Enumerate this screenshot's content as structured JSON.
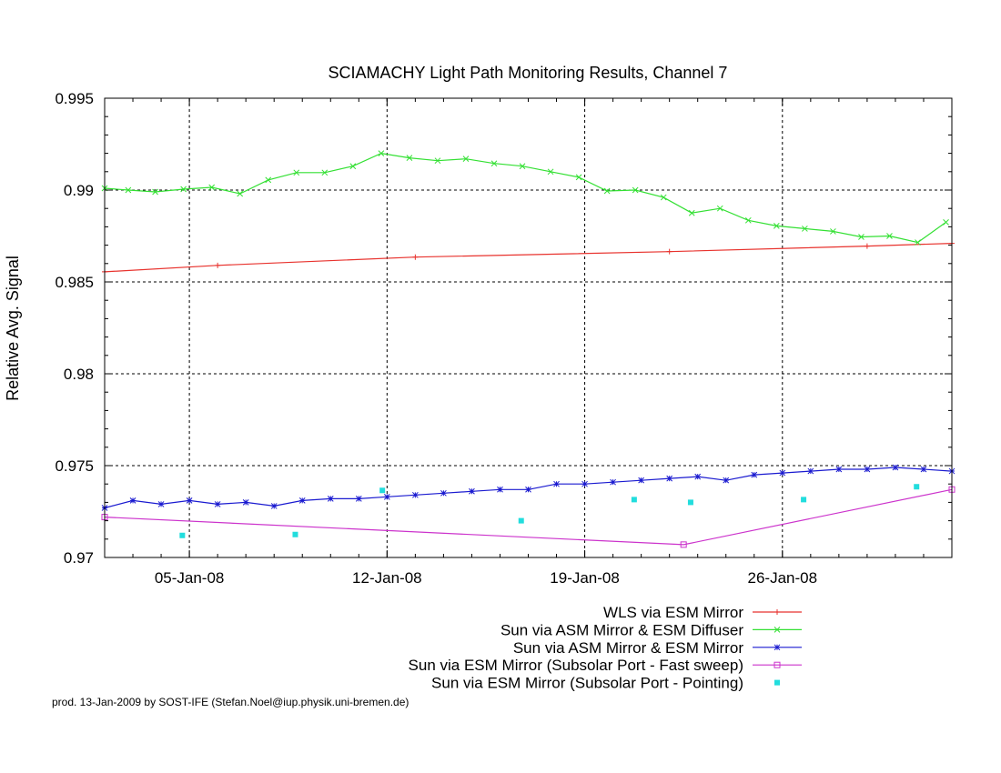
{
  "chart_data": {
    "type": "line",
    "title": "SCIAMACHY Light Path Monitoring Results, Channel 7",
    "xlabel": "",
    "ylabel": "Relative Avg. Signal",
    "xlim": [
      "2008-01-02",
      "2008-02-01"
    ],
    "ylim": [
      0.97,
      0.995
    ],
    "x_ticks": [
      "2008-01-05",
      "2008-01-12",
      "2008-01-19",
      "2008-01-26"
    ],
    "x_tick_labels": [
      "05-Jan-08",
      "12-Jan-08",
      "19-Jan-08",
      "26-Jan-08"
    ],
    "y_ticks": [
      0.97,
      0.975,
      0.98,
      0.985,
      0.99,
      0.995
    ],
    "y_tick_labels": [
      "0.97",
      "0.975",
      "0.98",
      "0.985",
      "0.99",
      "0.995"
    ],
    "grid": true,
    "legend_position": "bottom-right",
    "footer": "prod. 13-Jan-2009 by SOST-IFE (Stefan.Noel@iup.physik.uni-bremen.de)",
    "series": [
      {
        "name": "WLS via ESM Mirror",
        "color": "#e8322d",
        "marker": "plus",
        "line": true,
        "x": [
          "2008-01-02",
          "2008-01-06",
          "2008-01-13",
          "2008-01-22",
          "2008-01-29",
          "2008-02-01"
        ],
        "y": [
          0.98555,
          0.9859,
          0.98635,
          0.98665,
          0.98695,
          0.9871
        ]
      },
      {
        "name": "Sun via ASM Mirror & ESM Diffuser",
        "color": "#33e033",
        "marker": "x",
        "line": true,
        "x": [
          "2008-01-02",
          "2008-01-02 20:00",
          "2008-01-03 19:00",
          "2008-01-04 19:00",
          "2008-01-05 19:00",
          "2008-01-06 19:00",
          "2008-01-07 19:00",
          "2008-01-08 19:00",
          "2008-01-09 19:00",
          "2008-01-10 19:00",
          "2008-01-11 19:00",
          "2008-01-12 19:00",
          "2008-01-13 19:00",
          "2008-01-14 19:00",
          "2008-01-15 19:00",
          "2008-01-16 19:00",
          "2008-01-17 19:00",
          "2008-01-18 19:00",
          "2008-01-19 19:00",
          "2008-01-20 19:00",
          "2008-01-21 19:00",
          "2008-01-22 19:00",
          "2008-01-23 19:00",
          "2008-01-24 19:00",
          "2008-01-25 19:00",
          "2008-01-26 19:00",
          "2008-01-27 19:00",
          "2008-01-28 19:00",
          "2008-01-29 19:00",
          "2008-01-30 19:00",
          "2008-01-31 19:00"
        ],
        "y": [
          0.9901,
          0.99,
          0.9899,
          0.99005,
          0.99015,
          0.9898,
          0.99055,
          0.99095,
          0.99095,
          0.9913,
          0.992,
          0.99175,
          0.9916,
          0.9917,
          0.99145,
          0.9913,
          0.991,
          0.9907,
          0.98995,
          0.99,
          0.9896,
          0.98875,
          0.989,
          0.98835,
          0.98805,
          0.9879,
          0.98775,
          0.98745,
          0.9875,
          0.98715,
          0.98825
        ]
      },
      {
        "name": "Sun via ASM Mirror & ESM Mirror",
        "color": "#1a1ad0",
        "marker": "star",
        "line": true,
        "x": [
          "2008-01-02",
          "2008-01-03",
          "2008-01-04",
          "2008-01-05",
          "2008-01-06",
          "2008-01-07",
          "2008-01-08",
          "2008-01-09",
          "2008-01-10",
          "2008-01-11",
          "2008-01-12",
          "2008-01-13",
          "2008-01-14",
          "2008-01-15",
          "2008-01-16",
          "2008-01-17",
          "2008-01-18",
          "2008-01-19",
          "2008-01-20",
          "2008-01-21",
          "2008-01-22",
          "2008-01-23",
          "2008-01-24",
          "2008-01-25",
          "2008-01-26",
          "2008-01-27",
          "2008-01-28",
          "2008-01-29",
          "2008-01-30",
          "2008-01-31",
          "2008-02-01"
        ],
        "y": [
          0.9727,
          0.9731,
          0.9729,
          0.9731,
          0.9729,
          0.973,
          0.9728,
          0.9731,
          0.9732,
          0.9732,
          0.9733,
          0.9734,
          0.9735,
          0.9736,
          0.9737,
          0.9737,
          0.974,
          0.974,
          0.9741,
          0.9742,
          0.9743,
          0.9744,
          0.9742,
          0.9745,
          0.9746,
          0.9747,
          0.9748,
          0.9748,
          0.9749,
          0.9748,
          0.9747
        ]
      },
      {
        "name": "Sun via ESM Mirror (Subsolar Port - Fast sweep)",
        "color": "#cc33cc",
        "marker": "square",
        "line": true,
        "x": [
          "2008-01-02",
          "2008-01-22 12:00",
          "2008-02-01"
        ],
        "y": [
          0.9722,
          0.9707,
          0.9737
        ]
      },
      {
        "name": "Sun via ESM Mirror (Subsolar Port - Pointing)",
        "color": "#22dddd",
        "marker": "dot",
        "line": false,
        "x": [
          "2008-01-04 18:00",
          "2008-01-08 18:00",
          "2008-01-11 20:00",
          "2008-01-16 18:00",
          "2008-01-20 18:00",
          "2008-01-22 18:00",
          "2008-01-26 18:00",
          "2008-01-30 18:00"
        ],
        "y": [
          0.9712,
          0.97125,
          0.97365,
          0.972,
          0.97315,
          0.973,
          0.97315,
          0.97385
        ]
      }
    ]
  }
}
